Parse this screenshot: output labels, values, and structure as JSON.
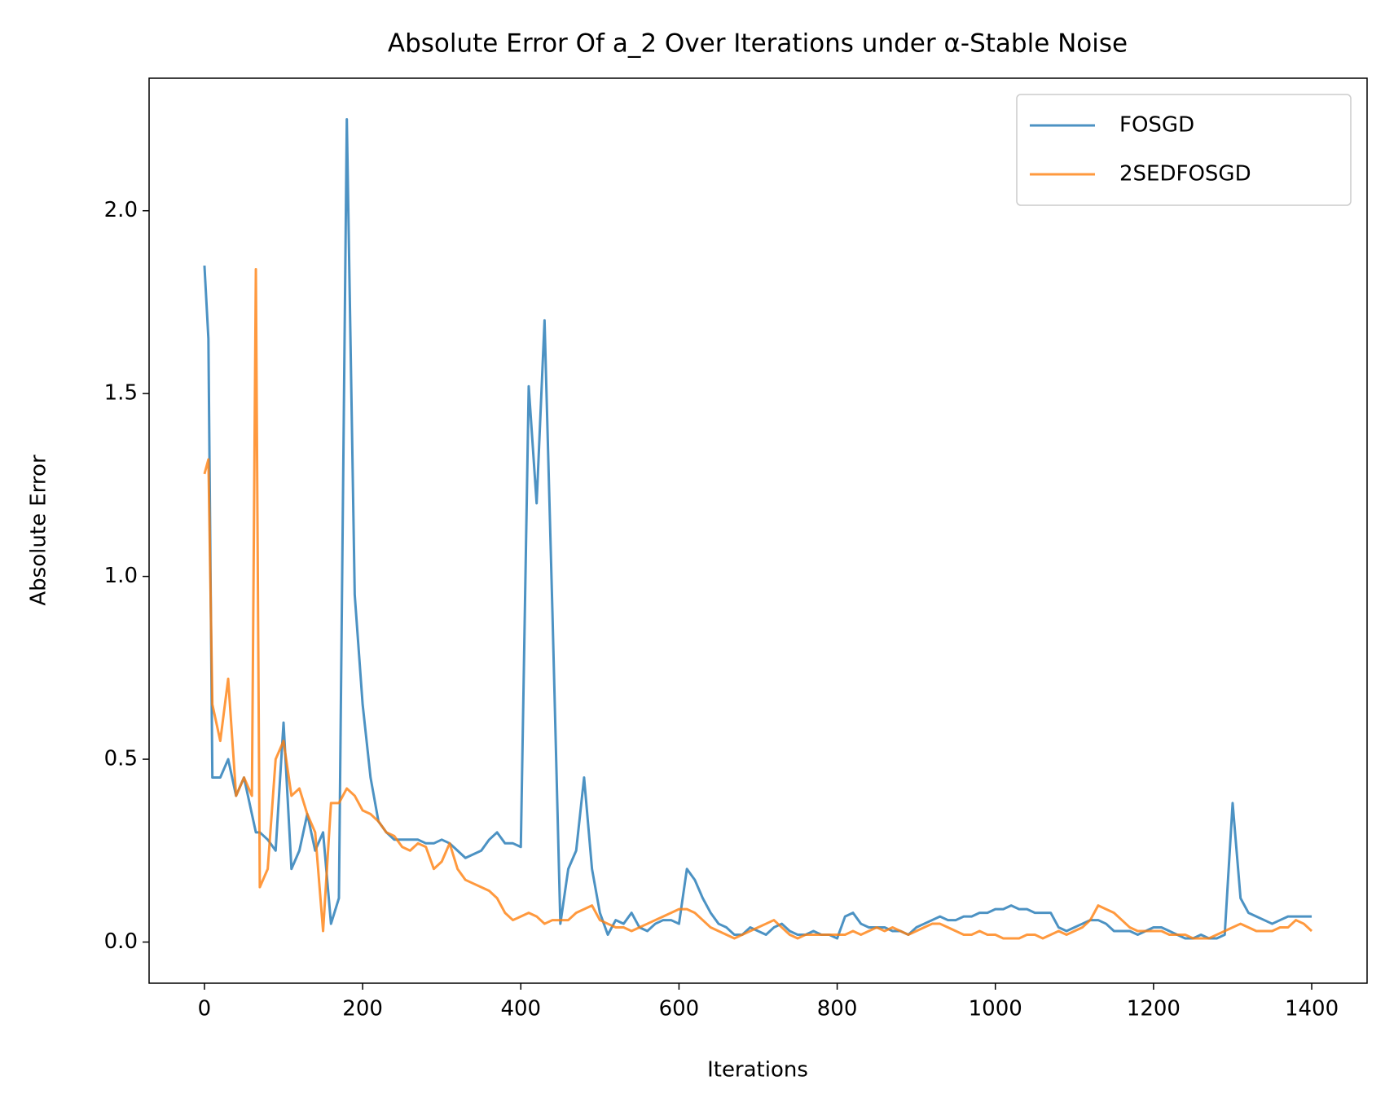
{
  "chart_data": {
    "type": "line",
    "title": "Absolute Error Of a_2 Over Iterations under α-Stable Noise",
    "xlabel": "Iterations",
    "ylabel": "Absolute Error",
    "x": [
      0,
      5,
      10,
      20,
      30,
      40,
      50,
      60,
      65,
      70,
      80,
      90,
      100,
      110,
      120,
      130,
      140,
      150,
      160,
      170,
      180,
      190,
      200,
      210,
      220,
      230,
      240,
      250,
      260,
      270,
      280,
      290,
      300,
      310,
      320,
      330,
      340,
      350,
      360,
      370,
      380,
      390,
      400,
      410,
      420,
      430,
      440,
      450,
      460,
      470,
      480,
      490,
      500,
      510,
      520,
      530,
      540,
      550,
      560,
      570,
      580,
      590,
      600,
      610,
      620,
      630,
      640,
      650,
      660,
      670,
      680,
      690,
      700,
      710,
      720,
      730,
      740,
      750,
      760,
      770,
      780,
      790,
      800,
      810,
      820,
      830,
      840,
      850,
      860,
      870,
      880,
      890,
      900,
      910,
      920,
      930,
      940,
      950,
      960,
      970,
      980,
      990,
      1000,
      1010,
      1020,
      1030,
      1040,
      1050,
      1060,
      1070,
      1080,
      1090,
      1100,
      1110,
      1120,
      1130,
      1140,
      1150,
      1160,
      1170,
      1180,
      1190,
      1200,
      1210,
      1220,
      1230,
      1240,
      1250,
      1260,
      1270,
      1280,
      1290,
      1300,
      1310,
      1320,
      1330,
      1340,
      1350,
      1360,
      1370,
      1380,
      1390,
      1400
    ],
    "series": [
      {
        "name": "FOSGD",
        "color": "#1f77b4",
        "values": [
          1.85,
          1.65,
          0.45,
          0.45,
          0.5,
          0.4,
          0.45,
          0.35,
          0.3,
          0.3,
          0.28,
          0.25,
          0.6,
          0.2,
          0.25,
          0.35,
          0.25,
          0.3,
          0.05,
          0.12,
          2.25,
          0.95,
          0.65,
          0.45,
          0.33,
          0.3,
          0.28,
          0.28,
          0.28,
          0.28,
          0.27,
          0.27,
          0.28,
          0.27,
          0.25,
          0.23,
          0.24,
          0.25,
          0.28,
          0.3,
          0.27,
          0.27,
          0.26,
          1.52,
          1.2,
          1.7,
          0.9,
          0.05,
          0.2,
          0.25,
          0.45,
          0.2,
          0.08,
          0.02,
          0.06,
          0.05,
          0.08,
          0.04,
          0.03,
          0.05,
          0.06,
          0.06,
          0.05,
          0.2,
          0.17,
          0.12,
          0.08,
          0.05,
          0.04,
          0.02,
          0.02,
          0.04,
          0.03,
          0.02,
          0.04,
          0.05,
          0.03,
          0.02,
          0.02,
          0.03,
          0.02,
          0.02,
          0.01,
          0.07,
          0.08,
          0.05,
          0.04,
          0.04,
          0.04,
          0.03,
          0.03,
          0.02,
          0.04,
          0.05,
          0.06,
          0.07,
          0.06,
          0.06,
          0.07,
          0.07,
          0.08,
          0.08,
          0.09,
          0.09,
          0.1,
          0.09,
          0.09,
          0.08,
          0.08,
          0.08,
          0.04,
          0.03,
          0.04,
          0.05,
          0.06,
          0.06,
          0.05,
          0.03,
          0.03,
          0.03,
          0.02,
          0.03,
          0.04,
          0.04,
          0.03,
          0.02,
          0.01,
          0.01,
          0.02,
          0.01,
          0.01,
          0.02,
          0.38,
          0.12,
          0.08,
          0.07,
          0.06,
          0.05,
          0.06,
          0.07,
          0.07,
          0.07,
          0.07
        ]
      },
      {
        "name": "2SEDFOSGD",
        "color": "#ff7f0e",
        "values": [
          1.28,
          1.32,
          0.65,
          0.55,
          0.72,
          0.4,
          0.45,
          0.4,
          1.84,
          0.15,
          0.2,
          0.5,
          0.55,
          0.4,
          0.42,
          0.35,
          0.3,
          0.03,
          0.38,
          0.38,
          0.42,
          0.4,
          0.36,
          0.35,
          0.33,
          0.3,
          0.29,
          0.26,
          0.25,
          0.27,
          0.26,
          0.2,
          0.22,
          0.27,
          0.2,
          0.17,
          0.16,
          0.15,
          0.14,
          0.12,
          0.08,
          0.06,
          0.07,
          0.08,
          0.07,
          0.05,
          0.06,
          0.06,
          0.06,
          0.08,
          0.09,
          0.1,
          0.06,
          0.05,
          0.04,
          0.04,
          0.03,
          0.04,
          0.05,
          0.06,
          0.07,
          0.08,
          0.09,
          0.09,
          0.08,
          0.06,
          0.04,
          0.03,
          0.02,
          0.01,
          0.02,
          0.03,
          0.04,
          0.05,
          0.06,
          0.04,
          0.02,
          0.01,
          0.02,
          0.02,
          0.02,
          0.02,
          0.02,
          0.02,
          0.03,
          0.02,
          0.03,
          0.04,
          0.03,
          0.04,
          0.03,
          0.02,
          0.03,
          0.04,
          0.05,
          0.05,
          0.04,
          0.03,
          0.02,
          0.02,
          0.03,
          0.02,
          0.02,
          0.01,
          0.01,
          0.01,
          0.02,
          0.02,
          0.01,
          0.02,
          0.03,
          0.02,
          0.03,
          0.04,
          0.06,
          0.1,
          0.09,
          0.08,
          0.06,
          0.04,
          0.03,
          0.03,
          0.03,
          0.03,
          0.02,
          0.02,
          0.02,
          0.01,
          0.01,
          0.01,
          0.02,
          0.03,
          0.04,
          0.05,
          0.04,
          0.03,
          0.03,
          0.03,
          0.04,
          0.04,
          0.06,
          0.05,
          0.03
        ]
      }
    ],
    "alpha": 0.8,
    "xlim": [
      -70,
      1470
    ],
    "ylim": [
      -0.1125,
      2.3625
    ],
    "xticks": [
      0,
      200,
      400,
      600,
      800,
      1000,
      1200,
      1400
    ],
    "yticks": [
      {
        "value": 0,
        "label": "0.0"
      },
      0.5,
      {
        "value": 1,
        "label": "1.0"
      },
      1.5,
      {
        "value": 2,
        "label": "2.0"
      }
    ],
    "legend": "upper right"
  }
}
